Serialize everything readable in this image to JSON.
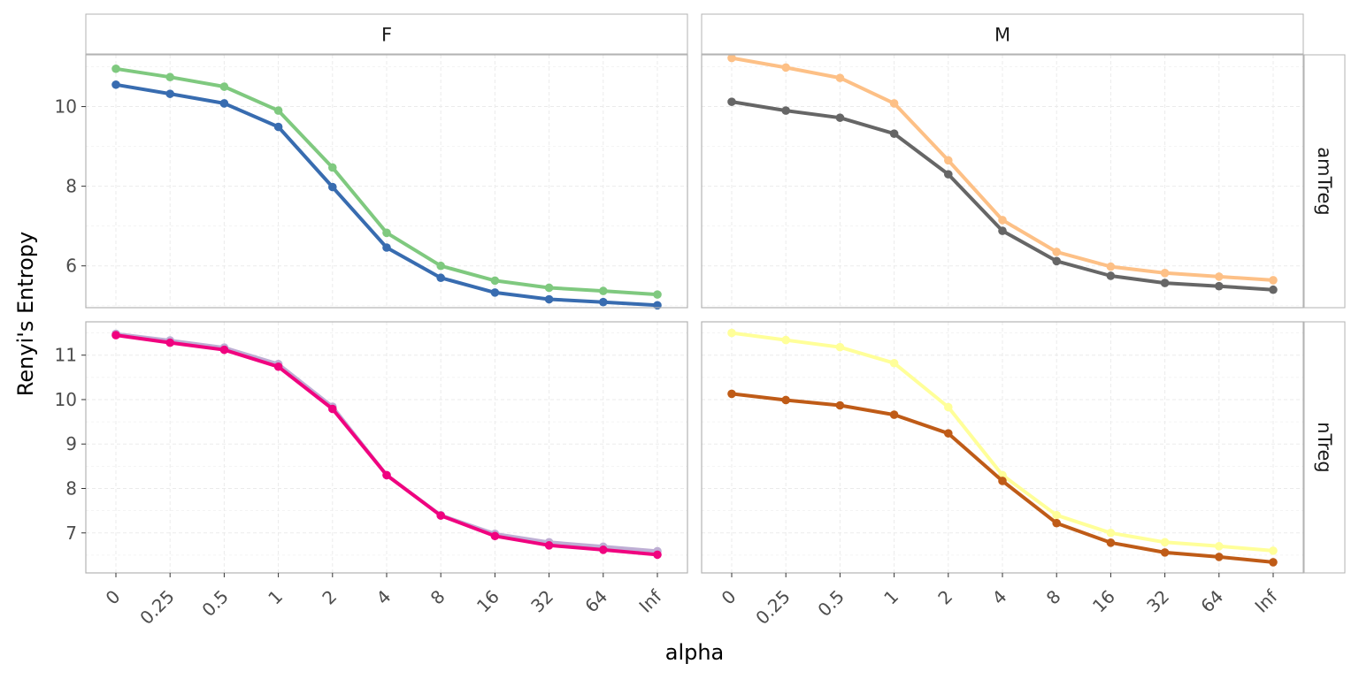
{
  "chart_data": {
    "type": "line",
    "xlabel": "alpha",
    "ylabel": "Renyi's Entropy",
    "x_categories": [
      "0",
      "0.25",
      "0.5",
      "1",
      "2",
      "4",
      "8",
      "16",
      "32",
      "64",
      "Inf"
    ],
    "col_facets": [
      "F",
      "M"
    ],
    "row_facets": [
      "amTreg",
      "nTreg"
    ],
    "grid": true,
    "panels": [
      {
        "col": "F",
        "row": "amTreg",
        "ylim": [
          4.95,
          11.3
        ],
        "yticks": [
          6,
          8,
          10
        ],
        "series": [
          {
            "color": "#7FC97F",
            "values": [
              10.95,
              10.74,
              10.5,
              9.9,
              8.47,
              6.83,
              6.0,
              5.63,
              5.45,
              5.37,
              5.28
            ]
          },
          {
            "color": "#386CB0",
            "values": [
              10.55,
              10.32,
              10.08,
              9.49,
              7.98,
              6.46,
              5.7,
              5.33,
              5.16,
              5.09,
              5.01
            ]
          }
        ]
      },
      {
        "col": "M",
        "row": "amTreg",
        "ylim": [
          4.95,
          11.3
        ],
        "yticks": [
          6,
          8,
          10
        ],
        "series": [
          {
            "color": "#FDC086",
            "values": [
              11.22,
              10.98,
              10.72,
              10.08,
              8.65,
              7.15,
              6.35,
              5.98,
              5.82,
              5.73,
              5.64
            ]
          },
          {
            "color": "#666666",
            "values": [
              10.12,
              9.9,
              9.72,
              9.32,
              8.3,
              6.88,
              6.12,
              5.75,
              5.57,
              5.49,
              5.4
            ]
          }
        ]
      },
      {
        "col": "F",
        "row": "nTreg",
        "ylim": [
          6.1,
          11.75
        ],
        "yticks": [
          7,
          8,
          9,
          10,
          11
        ],
        "series": [
          {
            "color": "#BEAED4",
            "values": [
              11.48,
              11.33,
              11.17,
              10.8,
              9.84,
              8.3,
              7.4,
              6.98,
              6.79,
              6.69,
              6.59
            ]
          },
          {
            "color": "#F0027F",
            "values": [
              11.45,
              11.28,
              11.12,
              10.74,
              9.79,
              8.3,
              7.39,
              6.93,
              6.72,
              6.62,
              6.51
            ]
          }
        ]
      },
      {
        "col": "M",
        "row": "nTreg",
        "ylim": [
          6.1,
          11.75
        ],
        "yticks": [
          7,
          8,
          9,
          10,
          11
        ],
        "series": [
          {
            "color": "#FFFF99",
            "values": [
              11.5,
              11.34,
              11.18,
              10.82,
              9.83,
              8.3,
              7.4,
              7.0,
              6.79,
              6.7,
              6.6
            ]
          },
          {
            "color": "#BF5B17",
            "values": [
              10.13,
              9.99,
              9.87,
              9.66,
              9.24,
              8.17,
              7.22,
              6.78,
              6.56,
              6.46,
              6.34
            ]
          }
        ]
      }
    ]
  }
}
